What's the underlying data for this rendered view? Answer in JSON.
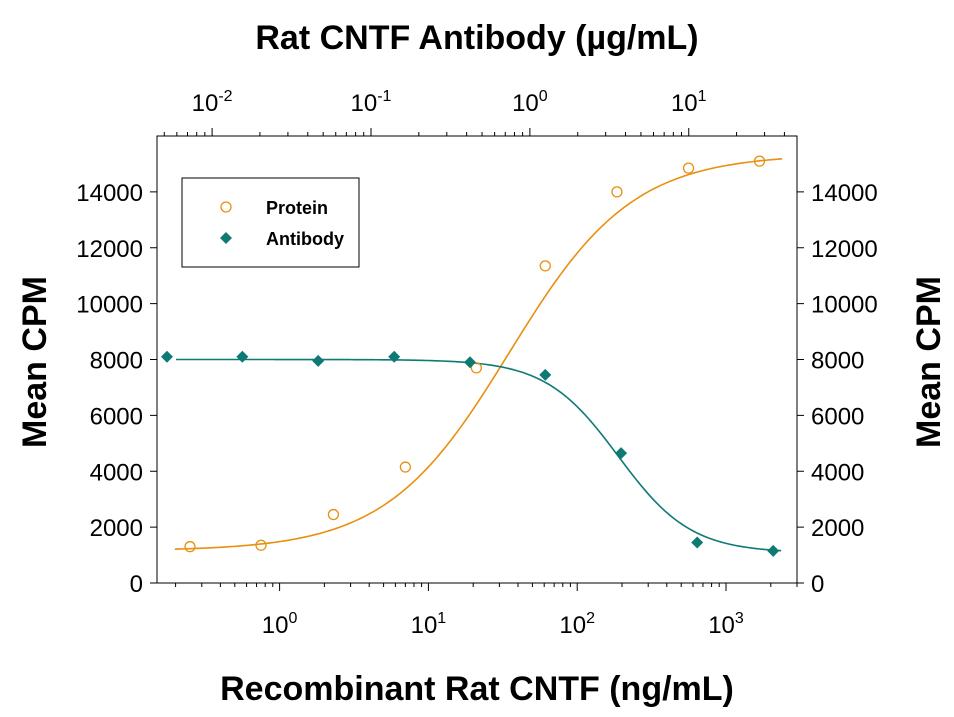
{
  "chart_data": {
    "type": "scatter",
    "title_top_axis": "Rat CNTF Antibody (µg/mL)",
    "xlabel": "Recombinant Rat CNTF (ng/mL)",
    "ylabel_left": "Mean CPM",
    "ylabel_right": "Mean CPM",
    "x_scale": "log",
    "x_bottom_lim": [
      0.15,
      3000
    ],
    "x_top_lim": [
      0.0045,
      48
    ],
    "ylim": [
      0,
      16000
    ],
    "y_ticks": [
      "0",
      "2000",
      "4000",
      "6000",
      "8000",
      "10000",
      "12000",
      "14000"
    ],
    "x_bottom_ticks": [
      {
        "base": "10",
        "exp": "0"
      },
      {
        "base": "10",
        "exp": "1"
      },
      {
        "base": "10",
        "exp": "2"
      },
      {
        "base": "10",
        "exp": "3"
      }
    ],
    "x_top_ticks": [
      {
        "base": "10",
        "exp": "-2"
      },
      {
        "base": "10",
        "exp": "-1"
      },
      {
        "base": "10",
        "exp": "0"
      },
      {
        "base": "10",
        "exp": "1"
      }
    ],
    "legend_position": "top-left",
    "grid": false,
    "series": [
      {
        "name": "Protein",
        "axis": "bottom",
        "marker": "open-circle",
        "color": "#e8900f",
        "x": [
          0.25,
          0.75,
          2.3,
          7,
          21,
          61,
          185,
          560,
          1680
        ],
        "y": [
          1300,
          1350,
          2450,
          4150,
          7700,
          11350,
          14000,
          14850,
          15100
        ]
      },
      {
        "name": "Antibody",
        "axis": "top",
        "marker": "filled-diamond",
        "color": "#0e7a74",
        "x": [
          0.0052,
          0.0155,
          0.0465,
          0.14,
          0.42,
          1.25,
          3.75,
          11.3,
          34
        ],
        "y": [
          8100,
          8100,
          7950,
          8100,
          7900,
          7450,
          4650,
          1450,
          1150
        ]
      }
    ]
  }
}
